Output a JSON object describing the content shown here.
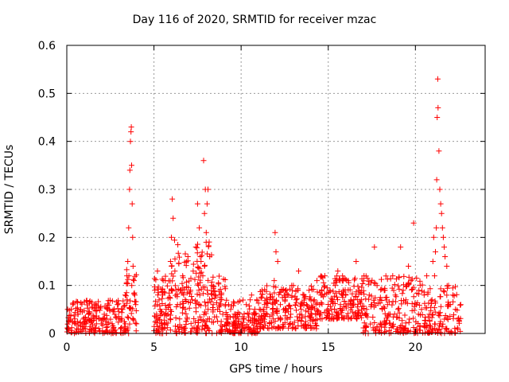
{
  "chart_data": {
    "type": "scatter",
    "title": "Day 116 of 2020, SRMTID for receiver mzac",
    "xlabel": "GPS time / hours",
    "ylabel": "SRMTID / TECUs",
    "xlim": [
      0,
      24
    ],
    "ylim": [
      0,
      0.6
    ],
    "xticks": [
      0,
      5,
      10,
      15,
      20
    ],
    "yticks": [
      0,
      0.1,
      0.2,
      0.3,
      0.4,
      0.5,
      0.6
    ],
    "grid": true,
    "marker": "+",
    "color": "#ff0000",
    "series": [
      {
        "name": "SRMTID",
        "x": [
          0.05,
          0.2,
          0.35,
          0.5,
          0.65,
          0.8,
          0.95,
          1.1,
          1.25,
          1.4,
          1.55,
          1.7,
          1.85,
          2.0,
          2.15,
          2.3,
          2.45,
          2.6,
          2.75,
          2.9,
          3.05,
          3.2,
          3.35,
          3.45,
          3.5,
          3.55,
          3.6,
          3.62,
          3.65,
          3.68,
          3.7,
          3.72,
          3.75,
          3.78,
          3.8,
          3.85,
          3.9,
          3.95,
          4.0,
          5.05,
          5.2,
          5.35,
          5.5,
          5.65,
          5.8,
          5.95,
          6.0,
          6.05,
          6.1,
          6.2,
          6.35,
          6.5,
          6.65,
          6.8,
          6.95,
          7.1,
          7.25,
          7.4,
          7.5,
          7.6,
          7.7,
          7.8,
          7.85,
          7.9,
          7.95,
          8.0,
          8.05,
          8.1,
          8.2,
          8.3,
          8.4,
          8.5,
          8.65,
          8.8,
          8.95,
          9.1,
          9.25,
          9.4,
          9.55,
          9.7,
          9.85,
          10.0,
          10.15,
          10.3,
          10.45,
          10.6,
          10.75,
          10.9,
          11.05,
          11.2,
          11.35,
          11.5,
          11.65,
          11.8,
          11.9,
          11.95,
          12.0,
          12.1,
          12.25,
          12.4,
          12.55,
          12.7,
          12.85,
          13.0,
          13.15,
          13.3,
          13.45,
          13.6,
          13.75,
          13.9,
          14.05,
          14.2,
          14.35,
          14.5,
          14.65,
          14.8,
          14.95,
          15.1,
          15.25,
          15.4,
          15.55,
          15.7,
          15.85,
          16.0,
          16.15,
          16.3,
          16.45,
          16.6,
          16.75,
          16.9,
          17.05,
          17.2,
          17.35,
          17.5,
          17.65,
          17.8,
          17.95,
          18.1,
          18.25,
          18.4,
          18.55,
          18.7,
          18.85,
          19.0,
          19.15,
          19.3,
          19.45,
          19.6,
          19.75,
          19.9,
          20.05,
          20.2,
          20.35,
          20.5,
          20.65,
          20.8,
          20.95,
          21.0,
          21.05,
          21.1,
          21.15,
          21.2,
          21.22,
          21.25,
          21.28,
          21.3,
          21.35,
          21.4,
          21.45,
          21.5,
          21.55,
          21.6,
          21.65,
          21.7,
          21.8,
          21.9,
          22.0,
          22.15,
          22.3,
          22.45,
          22.6
        ],
        "y": [
          0.05,
          0.03,
          0.06,
          0.02,
          0.04,
          0.05,
          0.03,
          0.02,
          0.04,
          0.03,
          0.01,
          0.02,
          0.03,
          0.02,
          0.04,
          0.03,
          0.05,
          0.02,
          0.04,
          0.06,
          0.03,
          0.05,
          0.08,
          0.12,
          0.15,
          0.22,
          0.3,
          0.34,
          0.4,
          0.42,
          0.43,
          0.35,
          0.27,
          0.2,
          0.14,
          0.11,
          0.08,
          0.06,
          0.02,
          0.09,
          0.13,
          0.05,
          0.08,
          0.11,
          0.04,
          0.15,
          0.2,
          0.28,
          0.24,
          0.13,
          0.06,
          0.09,
          0.12,
          0.05,
          0.16,
          0.09,
          0.13,
          0.18,
          0.27,
          0.22,
          0.15,
          0.12,
          0.36,
          0.25,
          0.3,
          0.21,
          0.27,
          0.3,
          0.16,
          0.1,
          0.06,
          0.08,
          0.05,
          0.07,
          0.04,
          0.06,
          0.03,
          0.05,
          0.02,
          0.04,
          0.03,
          0.02,
          0.03,
          0.06,
          0.04,
          0.08,
          0.03,
          0.07,
          0.05,
          0.09,
          0.06,
          0.04,
          0.07,
          0.05,
          0.11,
          0.21,
          0.17,
          0.15,
          0.06,
          0.09,
          0.05,
          0.08,
          0.04,
          0.1,
          0.07,
          0.13,
          0.05,
          0.08,
          0.06,
          0.09,
          0.04,
          0.07,
          0.11,
          0.06,
          0.08,
          0.12,
          0.05,
          0.09,
          0.07,
          0.1,
          0.13,
          0.06,
          0.09,
          0.08,
          0.11,
          0.07,
          0.06,
          0.15,
          0.09,
          0.07,
          0.12,
          0.05,
          0.08,
          0.06,
          0.18,
          0.1,
          0.07,
          0.05,
          0.09,
          0.06,
          0.04,
          0.12,
          0.08,
          0.05,
          0.18,
          0.09,
          0.07,
          0.14,
          0.11,
          0.23,
          0.06,
          0.09,
          0.05,
          0.08,
          0.12,
          0.04,
          0.07,
          0.15,
          0.2,
          0.12,
          0.17,
          0.22,
          0.32,
          0.45,
          0.53,
          0.47,
          0.38,
          0.3,
          0.27,
          0.25,
          0.22,
          0.2,
          0.18,
          0.16,
          0.14,
          0.1,
          0.06,
          0.08,
          0.05,
          0.03,
          0.06
        ],
        "groups": [
          {
            "x0": 0.0,
            "x1": 3.4,
            "ymin": 0.0,
            "ymax": 0.07,
            "n": 200
          },
          {
            "x0": 3.4,
            "x1": 4.0,
            "ymin": 0.0,
            "ymax": 0.16,
            "n": 40
          },
          {
            "x0": 5.0,
            "x1": 9.2,
            "ymin": 0.0,
            "ymax": 0.12,
            "n": 260
          },
          {
            "x0": 6.0,
            "x1": 8.5,
            "ymin": 0.08,
            "ymax": 0.2,
            "n": 60
          },
          {
            "x0": 9.2,
            "x1": 11.0,
            "ymin": 0.0,
            "ymax": 0.07,
            "n": 120
          },
          {
            "x0": 11.0,
            "x1": 14.5,
            "ymin": 0.01,
            "ymax": 0.1,
            "n": 220
          },
          {
            "x0": 14.5,
            "x1": 17.0,
            "ymin": 0.03,
            "ymax": 0.12,
            "n": 160
          },
          {
            "x0": 17.0,
            "x1": 20.8,
            "ymin": 0.0,
            "ymax": 0.12,
            "n": 220
          },
          {
            "x0": 20.8,
            "x1": 22.6,
            "ymin": 0.0,
            "ymax": 0.1,
            "n": 90
          }
        ]
      }
    ]
  }
}
